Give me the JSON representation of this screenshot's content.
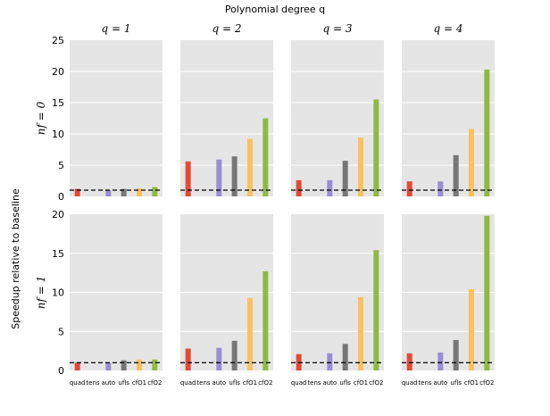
{
  "figure": {
    "top_title": "Polynomial degree q",
    "ylabel": "Speedup relative to baseline",
    "categories": [
      "quad",
      "tens",
      "auto",
      "ufls",
      "cfO1",
      "cfO2"
    ],
    "colors": [
      "#e24a33",
      "#348abd",
      "#988ed5",
      "#777777",
      "#fbc15e",
      "#8eba42"
    ],
    "panel_bg": "#e5e5e5",
    "grid_color": "#ffffff",
    "baseline_value": 1
  },
  "chart_data": [
    {
      "type": "bar",
      "row_label": "nf = 0",
      "col_label": "q = 1",
      "categories": [
        "quad",
        "tens",
        "auto",
        "ufls",
        "cfO1",
        "cfO2"
      ],
      "values": [
        1.2,
        0,
        1.0,
        1.2,
        1.3,
        1.5
      ],
      "ylim": [
        0,
        25
      ],
      "yticks": [
        0,
        5,
        10,
        15,
        20,
        25
      ]
    },
    {
      "type": "bar",
      "row_label": "nf = 0",
      "col_label": "q = 2",
      "categories": [
        "quad",
        "tens",
        "auto",
        "ufls",
        "cfO1",
        "cfO2"
      ],
      "values": [
        5.6,
        0,
        5.9,
        6.4,
        9.2,
        12.5
      ],
      "ylim": [
        0,
        25
      ],
      "yticks": [
        0,
        5,
        10,
        15,
        20,
        25
      ]
    },
    {
      "type": "bar",
      "row_label": "nf = 0",
      "col_label": "q = 3",
      "categories": [
        "quad",
        "tens",
        "auto",
        "ufls",
        "cfO1",
        "cfO2"
      ],
      "values": [
        2.6,
        0,
        2.6,
        5.7,
        9.4,
        15.5
      ],
      "ylim": [
        0,
        25
      ],
      "yticks": [
        0,
        5,
        10,
        15,
        20,
        25
      ]
    },
    {
      "type": "bar",
      "row_label": "nf = 0",
      "col_label": "q = 4",
      "categories": [
        "quad",
        "tens",
        "auto",
        "ufls",
        "cfO1",
        "cfO2"
      ],
      "values": [
        2.4,
        0,
        2.4,
        6.6,
        10.8,
        20.3
      ],
      "ylim": [
        0,
        25
      ],
      "yticks": [
        0,
        5,
        10,
        15,
        20,
        25
      ]
    },
    {
      "type": "bar",
      "row_label": "nf = 1",
      "col_label": "q = 1",
      "categories": [
        "quad",
        "tens",
        "auto",
        "ufls",
        "cfO1",
        "cfO2"
      ],
      "values": [
        1.0,
        0,
        1.0,
        1.3,
        1.4,
        1.4
      ],
      "ylim": [
        0,
        20
      ],
      "yticks": [
        0,
        5,
        10,
        15,
        20
      ]
    },
    {
      "type": "bar",
      "row_label": "nf = 1",
      "col_label": "q = 2",
      "categories": [
        "quad",
        "tens",
        "auto",
        "ufls",
        "cfO1",
        "cfO2"
      ],
      "values": [
        2.8,
        0,
        2.9,
        3.8,
        9.3,
        12.7
      ],
      "ylim": [
        0,
        20
      ],
      "yticks": [
        0,
        5,
        10,
        15,
        20
      ]
    },
    {
      "type": "bar",
      "row_label": "nf = 1",
      "col_label": "q = 3",
      "categories": [
        "quad",
        "tens",
        "auto",
        "ufls",
        "cfO1",
        "cfO2"
      ],
      "values": [
        2.1,
        0,
        2.2,
        3.4,
        9.4,
        15.4
      ],
      "ylim": [
        0,
        20
      ],
      "yticks": [
        0,
        5,
        10,
        15,
        20
      ]
    },
    {
      "type": "bar",
      "row_label": "nf = 1",
      "col_label": "q = 4",
      "categories": [
        "quad",
        "tens",
        "auto",
        "ufls",
        "cfO1",
        "cfO2"
      ],
      "values": [
        2.2,
        0,
        2.3,
        3.9,
        10.4,
        19.8
      ],
      "ylim": [
        0,
        20
      ],
      "yticks": [
        0,
        5,
        10,
        15,
        20
      ]
    }
  ]
}
